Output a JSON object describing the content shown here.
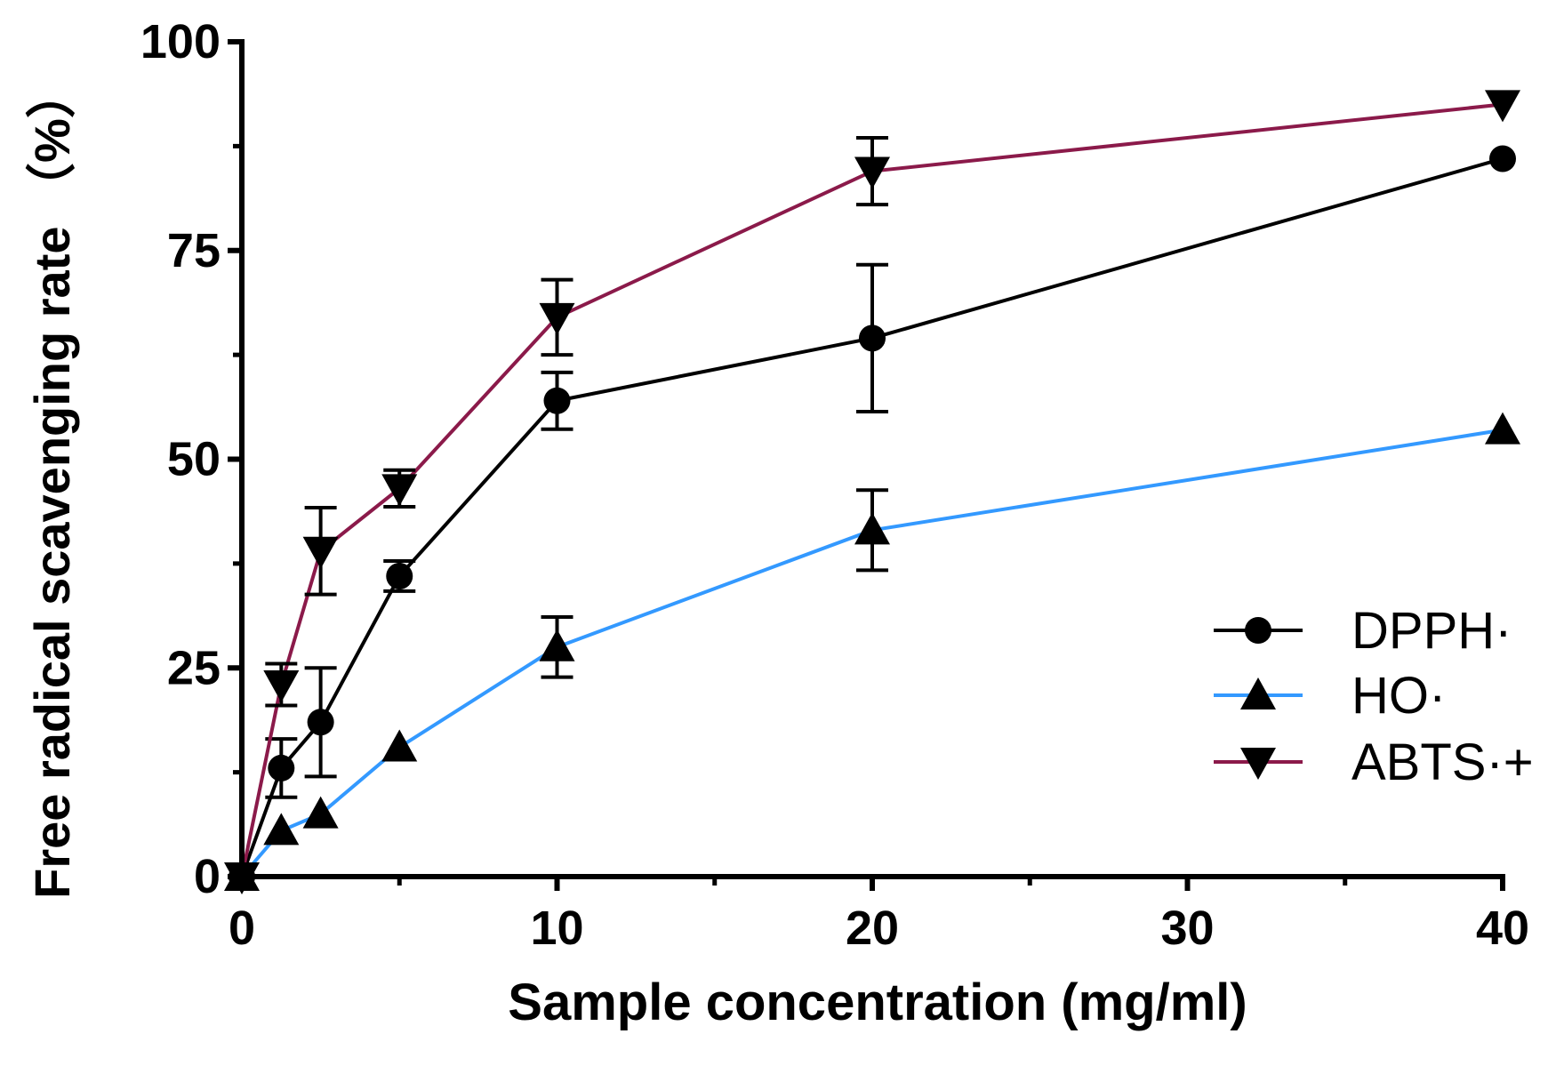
{
  "chart_data": {
    "type": "line",
    "title": "",
    "xlabel": "Sample concentration (mg/ml)",
    "ylabel": "Free radical scavenging rate （%）",
    "xlim": [
      0,
      40
    ],
    "ylim": [
      0,
      100
    ],
    "xticks": [
      0,
      10,
      20,
      30,
      40
    ],
    "xtick_labels": [
      "0",
      "10",
      "20",
      "30",
      "40"
    ],
    "yticks": [
      0,
      25,
      50,
      75,
      100
    ],
    "ytick_labels": [
      "0",
      "25",
      "50",
      "75",
      "100"
    ],
    "legend_position": "lower-right",
    "series": [
      {
        "name": "DPPH·",
        "color": "#000000",
        "marker": "circle",
        "x": [
          0,
          1.25,
          2.5,
          5,
          10,
          20,
          40
        ],
        "values": [
          0,
          13,
          18.5,
          36,
          57,
          64.5,
          86
        ],
        "errors": [
          0,
          3.5,
          6.5,
          1.8,
          3.4,
          8.8,
          0
        ]
      },
      {
        "name": "HO·",
        "color": "#3399ff",
        "marker": "triangle-up",
        "x": [
          0,
          1.25,
          2.5,
          5,
          10,
          20,
          40
        ],
        "values": [
          0,
          5.5,
          7.5,
          15.5,
          27.5,
          41.5,
          53.5
        ],
        "errors": [
          0,
          0,
          0,
          0,
          3.6,
          4.8,
          0
        ]
      },
      {
        "name": "ABTS·+",
        "color": "#8b1a4a",
        "marker": "triangle-down",
        "x": [
          0,
          1.25,
          2.5,
          5,
          10,
          20,
          40
        ],
        "values": [
          0,
          23,
          39,
          46.5,
          67,
          84.5,
          92.5
        ],
        "errors": [
          0,
          2.5,
          5.2,
          2.2,
          4.5,
          4,
          0
        ]
      }
    ]
  }
}
